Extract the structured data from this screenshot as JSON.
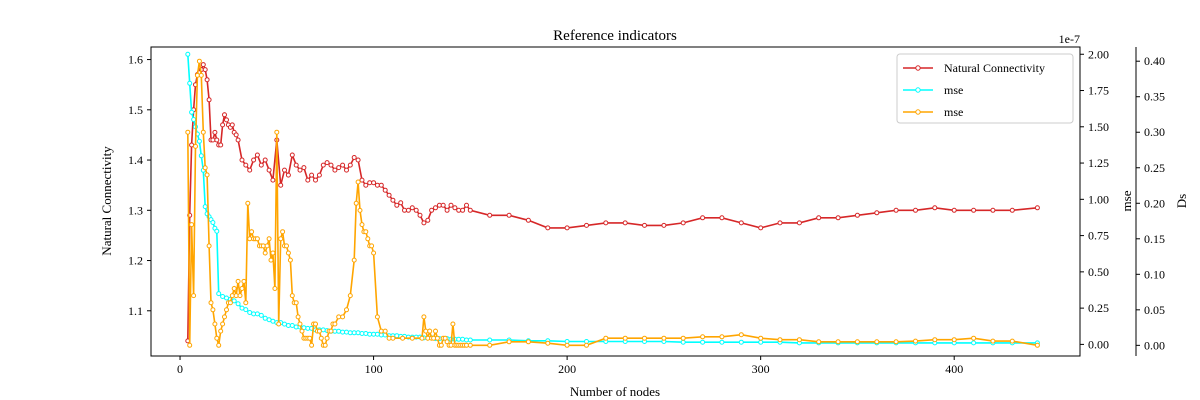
{
  "chart_data": {
    "type": "line",
    "title": "Reference indicators",
    "xlabel": "Number of nodes",
    "xlim": [
      -15,
      465
    ],
    "x_ticks": [
      0,
      100,
      200,
      300,
      400
    ],
    "axes": {
      "left": {
        "label": "Natural Connectivity",
        "ylim": [
          1.01,
          1.625
        ],
        "ticks": [
          1.1,
          1.2,
          1.3,
          1.4,
          1.5,
          1.6
        ],
        "tick_labels": [
          "1.1",
          "1.2",
          "1.3",
          "1.4",
          "1.5",
          "1.6"
        ]
      },
      "right": {
        "label": "mse",
        "multiplier_text": "1e-7",
        "ylim": [
          -0.08,
          2.05
        ],
        "ticks": [
          0,
          0.25,
          0.5,
          0.75,
          1.0,
          1.25,
          1.5,
          1.75,
          2.0
        ],
        "tick_labels": [
          "0.00",
          "0.25",
          "0.50",
          "0.75",
          "1.00",
          "1.25",
          "1.50",
          "1.75",
          "2.00"
        ]
      },
      "right2": {
        "label": "Ds",
        "ylim": [
          -0.015,
          0.42
        ],
        "ticks": [
          0,
          0.05,
          0.1,
          0.15,
          0.2,
          0.25,
          0.3,
          0.35,
          0.4
        ],
        "tick_labels": [
          "0.00",
          "0.05",
          "0.10",
          "0.15",
          "0.20",
          "0.25",
          "0.30",
          "0.35",
          "0.40"
        ]
      }
    },
    "legend_position": "top-right",
    "series": [
      {
        "name": "Natural Connectivity",
        "axis": "left",
        "color": "#d62728",
        "x": [
          4,
          5,
          6,
          7,
          8,
          9,
          10,
          11,
          12,
          13,
          14,
          15,
          16,
          17,
          18,
          19,
          20,
          21,
          22,
          23,
          24,
          25,
          26,
          27,
          28,
          29,
          30,
          32,
          34,
          36,
          38,
          40,
          42,
          44,
          46,
          48,
          50,
          52,
          54,
          56,
          58,
          60,
          62,
          64,
          66,
          68,
          70,
          72,
          74,
          76,
          78,
          80,
          82,
          84,
          86,
          88,
          90,
          92,
          94,
          96,
          98,
          100,
          102,
          104,
          106,
          108,
          110,
          112,
          114,
          116,
          118,
          120,
          122,
          124,
          126,
          128,
          130,
          132,
          134,
          136,
          138,
          140,
          142,
          144,
          146,
          148,
          150,
          160,
          170,
          180,
          190,
          200,
          210,
          220,
          230,
          240,
          250,
          260,
          270,
          280,
          290,
          300,
          310,
          320,
          330,
          340,
          350,
          360,
          370,
          380,
          390,
          400,
          410,
          420,
          430,
          443
        ],
        "y": [
          1.04,
          1.29,
          1.43,
          1.5,
          1.55,
          1.57,
          1.575,
          1.58,
          1.59,
          1.58,
          1.56,
          1.52,
          1.44,
          1.44,
          1.455,
          1.44,
          1.43,
          1.43,
          1.47,
          1.49,
          1.48,
          1.47,
          1.465,
          1.47,
          1.455,
          1.45,
          1.44,
          1.4,
          1.39,
          1.38,
          1.4,
          1.41,
          1.39,
          1.4,
          1.38,
          1.36,
          1.44,
          1.35,
          1.38,
          1.37,
          1.41,
          1.39,
          1.38,
          1.385,
          1.36,
          1.37,
          1.36,
          1.37,
          1.39,
          1.395,
          1.39,
          1.38,
          1.385,
          1.39,
          1.38,
          1.39,
          1.405,
          1.4,
          1.36,
          1.35,
          1.355,
          1.355,
          1.35,
          1.35,
          1.34,
          1.33,
          1.32,
          1.31,
          1.315,
          1.3,
          1.3,
          1.305,
          1.3,
          1.29,
          1.275,
          1.28,
          1.3,
          1.305,
          1.31,
          1.31,
          1.3,
          1.31,
          1.305,
          1.3,
          1.3,
          1.31,
          1.3,
          1.29,
          1.29,
          1.28,
          1.265,
          1.265,
          1.27,
          1.275,
          1.275,
          1.27,
          1.27,
          1.275,
          1.285,
          1.285,
          1.275,
          1.265,
          1.275,
          1.275,
          1.285,
          1.285,
          1.29,
          1.295,
          1.3,
          1.3,
          1.305,
          1.3,
          1.3,
          1.3,
          1.3,
          1.305
        ]
      },
      {
        "name": "mse",
        "axis": "right",
        "color": "#00ffff",
        "x": [
          4,
          5,
          6,
          7,
          8,
          9,
          10,
          11,
          12,
          13,
          14,
          15,
          16,
          17,
          18,
          19,
          20,
          22,
          24,
          26,
          28,
          30,
          32,
          34,
          36,
          38,
          40,
          42,
          44,
          46,
          48,
          50,
          52,
          54,
          56,
          58,
          60,
          62,
          64,
          66,
          68,
          70,
          72,
          74,
          76,
          78,
          80,
          82,
          84,
          86,
          88,
          90,
          92,
          94,
          96,
          98,
          100,
          102,
          104,
          106,
          108,
          110,
          112,
          114,
          116,
          118,
          120,
          122,
          124,
          126,
          128,
          130,
          132,
          134,
          136,
          138,
          140,
          142,
          144,
          146,
          148,
          150,
          160,
          170,
          180,
          190,
          200,
          210,
          220,
          230,
          240,
          250,
          260,
          270,
          280,
          290,
          300,
          310,
          320,
          330,
          340,
          350,
          360,
          370,
          380,
          390,
          400,
          410,
          420,
          430,
          443
        ],
        "y": [
          2.0,
          1.8,
          1.6,
          1.55,
          1.5,
          1.45,
          1.4,
          1.3,
          1.2,
          0.95,
          0.9,
          0.88,
          0.86,
          0.84,
          0.8,
          0.78,
          0.35,
          0.33,
          0.32,
          0.31,
          0.3,
          0.28,
          0.25,
          0.24,
          0.22,
          0.21,
          0.21,
          0.2,
          0.18,
          0.17,
          0.16,
          0.15,
          0.15,
          0.14,
          0.13,
          0.13,
          0.12,
          0.12,
          0.115,
          0.11,
          0.11,
          0.1,
          0.1,
          0.1,
          0.095,
          0.09,
          0.09,
          0.09,
          0.085,
          0.085,
          0.08,
          0.08,
          0.08,
          0.075,
          0.075,
          0.07,
          0.07,
          0.07,
          0.065,
          0.065,
          0.06,
          0.06,
          0.06,
          0.055,
          0.055,
          0.05,
          0.05,
          0.05,
          0.05,
          0.045,
          0.045,
          0.045,
          0.04,
          0.04,
          0.04,
          0.04,
          0.035,
          0.035,
          0.035,
          0.035,
          0.03,
          0.03,
          0.03,
          0.03,
          0.025,
          0.025,
          0.02,
          0.02,
          0.02,
          0.02,
          0.02,
          0.02,
          0.015,
          0.015,
          0.015,
          0.015,
          0.015,
          0.015,
          0.01,
          0.01,
          0.01,
          0.01,
          0.01,
          0.01,
          0.01,
          0.01,
          0.01,
          0.01,
          0.01,
          0.01,
          0.01
        ]
      },
      {
        "name": "mse",
        "axis": "right2",
        "color": "#ffa500",
        "x": [
          4,
          5,
          6,
          7,
          8,
          9,
          10,
          11,
          12,
          13,
          14,
          15,
          16,
          17,
          18,
          19,
          20,
          21,
          22,
          23,
          24,
          25,
          26,
          27,
          28,
          29,
          30,
          31,
          32,
          33,
          34,
          35,
          36,
          37,
          38,
          39,
          40,
          41,
          42,
          43,
          44,
          45,
          46,
          47,
          48,
          49,
          50,
          51,
          52,
          53,
          54,
          55,
          56,
          57,
          58,
          59,
          60,
          61,
          62,
          63,
          64,
          65,
          66,
          67,
          68,
          69,
          70,
          71,
          72,
          73,
          74,
          75,
          76,
          77,
          78,
          79,
          80,
          82,
          84,
          86,
          88,
          90,
          91,
          92,
          93,
          94,
          95,
          96,
          97,
          98,
          99,
          100,
          102,
          104,
          106,
          108,
          110,
          115,
          120,
          125,
          126,
          127,
          128,
          129,
          130,
          131,
          132,
          133,
          134,
          135,
          136,
          137,
          138,
          139,
          140,
          141,
          142,
          143,
          144,
          145,
          146,
          147,
          148,
          150,
          160,
          170,
          180,
          190,
          200,
          210,
          220,
          230,
          240,
          250,
          260,
          270,
          280,
          290,
          300,
          310,
          320,
          330,
          340,
          350,
          360,
          370,
          380,
          390,
          400,
          410,
          420,
          430,
          443
        ],
        "y": [
          0.3,
          0.0,
          0.17,
          0.07,
          0.28,
          0.38,
          0.4,
          0.38,
          0.3,
          0.25,
          0.24,
          0.14,
          0.06,
          0.05,
          0.03,
          0.01,
          0.0,
          0.02,
          0.03,
          0.04,
          0.05,
          0.06,
          0.06,
          0.07,
          0.08,
          0.07,
          0.09,
          0.07,
          0.08,
          0.09,
          0.06,
          0.2,
          0.15,
          0.16,
          0.15,
          0.15,
          0.15,
          0.14,
          0.14,
          0.14,
          0.13,
          0.14,
          0.15,
          0.12,
          0.13,
          0.08,
          0.3,
          0.03,
          0.15,
          0.16,
          0.14,
          0.14,
          0.13,
          0.12,
          0.07,
          0.06,
          0.06,
          0.04,
          0.03,
          0.02,
          0.01,
          0.01,
          0.01,
          0.01,
          0.0,
          0.03,
          0.03,
          0.02,
          0.02,
          0.01,
          0.0,
          0.0,
          0.01,
          0.02,
          0.02,
          0.03,
          0.03,
          0.04,
          0.04,
          0.05,
          0.07,
          0.12,
          0.2,
          0.23,
          0.19,
          0.17,
          0.16,
          0.16,
          0.15,
          0.14,
          0.14,
          0.13,
          0.04,
          0.02,
          0.02,
          0.01,
          0.01,
          0.01,
          0.01,
          0.01,
          0.04,
          0.02,
          0.01,
          0.02,
          0.01,
          0.01,
          0.02,
          0.01,
          0.0,
          0.0,
          0.01,
          0.01,
          0.005,
          0.0,
          0.0,
          0.03,
          0.0,
          0.0,
          0.0,
          0.0,
          0.0,
          0.0,
          0.0,
          0.0,
          0.0,
          0.005,
          0.005,
          0.003,
          0.0,
          0.0,
          0.01,
          0.01,
          0.01,
          0.01,
          0.01,
          0.012,
          0.012,
          0.015,
          0.01,
          0.008,
          0.008,
          0.005,
          0.005,
          0.005,
          0.005,
          0.005,
          0.006,
          0.008,
          0.008,
          0.01,
          0.006,
          0.006,
          0.0
        ]
      }
    ]
  }
}
